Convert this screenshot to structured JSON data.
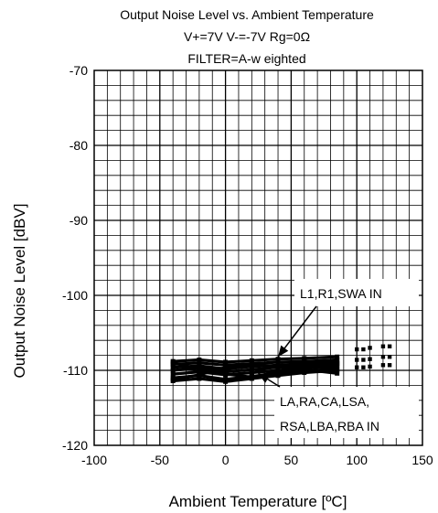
{
  "chart_data": {
    "type": "line",
    "title_lines": [
      "Output Noise Level vs. Ambient Temperature",
      "V+=7V V-=-7V Rg=0Ω",
      "FILTER=A-w eighted"
    ],
    "xlabel": "Ambient Temperature [ºC]",
    "ylabel": "Output Noise Level [dBV]",
    "xlim": [
      -100,
      150
    ],
    "ylim": [
      -120,
      -70
    ],
    "x_ticks": [
      -100,
      -50,
      0,
      50,
      100,
      150
    ],
    "y_ticks": [
      -120,
      -110,
      -100,
      -90,
      -80,
      -70
    ],
    "x_tick_labels": [
      "-100",
      "-50",
      "0",
      "50",
      "100",
      "150"
    ],
    "y_tick_labels": [
      "-120",
      "-110",
      "-100",
      "-90",
      "-80",
      "-70"
    ],
    "x_minor_step": 10,
    "y_minor_step": 2,
    "grid": true,
    "series": [
      {
        "x": [
          -40,
          -20,
          0,
          20,
          40,
          60,
          85
        ],
        "y": [
          -108.8,
          -108.6,
          -108.9,
          -108.7,
          -108.5,
          -108.4,
          -108.2
        ]
      },
      {
        "x": [
          -40,
          -20,
          0,
          20,
          40,
          60,
          85
        ],
        "y": [
          -109.2,
          -109.0,
          -109.3,
          -109.1,
          -108.9,
          -108.8,
          -108.6
        ]
      },
      {
        "x": [
          -40,
          -20,
          0,
          20,
          40,
          60,
          85
        ],
        "y": [
          -109.6,
          -109.4,
          -109.8,
          -109.5,
          -109.3,
          -109.1,
          -108.9
        ]
      },
      {
        "x": [
          -40,
          -20,
          0,
          20,
          40,
          60,
          85
        ],
        "y": [
          -110.0,
          -109.7,
          -110.2,
          -109.9,
          -109.6,
          -109.4,
          -109.2
        ]
      },
      {
        "x": [
          -40,
          -20,
          0,
          20,
          40,
          60,
          85
        ],
        "y": [
          -110.5,
          -110.2,
          -110.6,
          -110.3,
          -110.0,
          -109.7,
          -109.5
        ]
      },
      {
        "x": [
          -40,
          -20,
          0,
          20,
          40,
          60,
          85
        ],
        "y": [
          -111.0,
          -110.7,
          -111.2,
          -110.8,
          -110.4,
          -110.1,
          -109.8
        ]
      },
      {
        "x": [
          -40,
          -20,
          0,
          20,
          40,
          60,
          85
        ],
        "y": [
          -111.4,
          -111.1,
          -111.5,
          -111.1,
          -110.7,
          -110.3,
          -110.0
        ]
      },
      {
        "x": [
          -40,
          -20,
          0,
          20,
          40,
          60,
          85
        ],
        "y": [
          -109.0,
          -109.8,
          -110.5,
          -110.9,
          -110.2,
          -109.6,
          -109.1
        ]
      },
      {
        "x": [
          -40,
          -20,
          0,
          20,
          40,
          60,
          85
        ],
        "y": [
          -111.2,
          -110.6,
          -109.6,
          -109.2,
          -109.5,
          -109.9,
          -110.4
        ]
      },
      {
        "x": [
          100,
          105,
          100,
          105,
          100,
          105
        ],
        "y": [
          -107.2,
          -107.2,
          -108.6,
          -108.6,
          -109.6,
          -109.6
        ]
      },
      {
        "x": [
          110,
          110,
          110
        ],
        "y": [
          -107.0,
          -108.5,
          -109.5
        ]
      },
      {
        "x": [
          120,
          125,
          120,
          125,
          120,
          125
        ],
        "y": [
          -106.8,
          -106.8,
          -108.2,
          -108.2,
          -109.3,
          -109.3
        ]
      }
    ],
    "annotations": [
      {
        "lines": [
          "L1,R1,SWA  IN"
        ],
        "points_to": {
          "x": 40,
          "y": -108.2
        }
      },
      {
        "lines": [
          "LA,RA,CA,LSA,",
          "RSA,LBA,RBA  IN"
        ],
        "points_to": {
          "x": 25,
          "y": -110.4
        }
      }
    ]
  }
}
